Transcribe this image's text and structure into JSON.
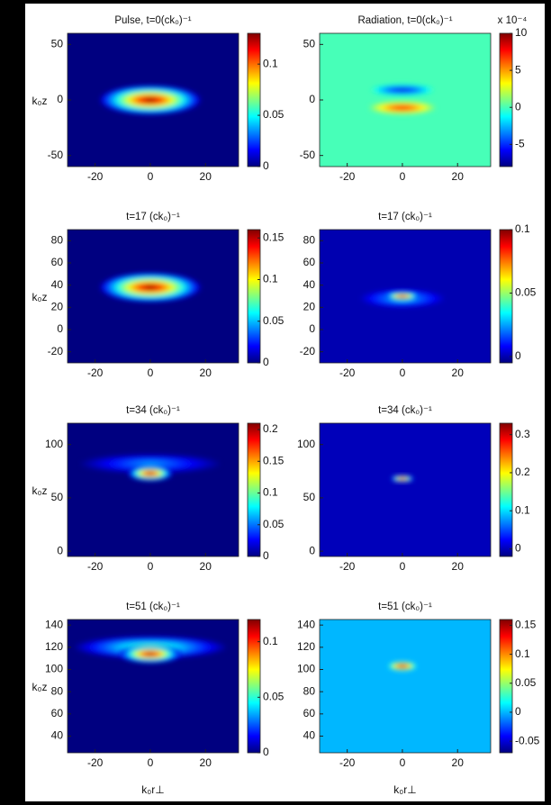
{
  "chart_data": [
    {
      "type": "heatmap",
      "title": "Pulse, t=0(ck₀)⁻¹",
      "ylabel": "k₀z",
      "colormap": "jet",
      "xlim": [
        -30,
        32
      ],
      "xticks": [
        -20,
        0,
        20
      ],
      "ylim": [
        -60,
        60
      ],
      "yticks": [
        -50,
        0,
        50
      ],
      "clim": [
        0,
        0.13
      ],
      "cticks": [
        0,
        0.05,
        0.1
      ],
      "blobs": [
        {
          "x": 0,
          "y": 0,
          "rx": 18,
          "ry": 13,
          "value": 0.13
        }
      ]
    },
    {
      "type": "heatmap",
      "title": "Radiation, t=0(ck₀)⁻¹",
      "colormap": "jet",
      "cmultiplier": "x 10⁻⁴",
      "xlim": [
        -30,
        32
      ],
      "xticks": [
        -20,
        0,
        20
      ],
      "ylim": [
        -60,
        60
      ],
      "yticks": [
        -50,
        0,
        50
      ],
      "clim": [
        -8,
        10
      ],
      "cticks": [
        -5,
        0,
        5,
        10
      ],
      "blobs": [
        {
          "x": 0,
          "y": 9,
          "rx": 11,
          "ry": 5,
          "value": -7
        },
        {
          "x": 0,
          "y": -7,
          "rx": 12,
          "ry": 6,
          "value": 8
        }
      ]
    },
    {
      "type": "heatmap",
      "title": "t=17 (ck₀)⁻¹",
      "ylabel": "k₀z",
      "colormap": "jet",
      "xlim": [
        -30,
        32
      ],
      "xticks": [
        -20,
        0,
        20
      ],
      "ylim": [
        -30,
        90
      ],
      "yticks": [
        -20,
        0,
        20,
        40,
        60,
        80
      ],
      "clim": [
        0,
        0.16
      ],
      "cticks": [
        0,
        0.05,
        0.1,
        0.15
      ],
      "blobs": [
        {
          "x": 0,
          "y": 38,
          "rx": 18,
          "ry": 13,
          "value": 0.16
        }
      ]
    },
    {
      "type": "heatmap",
      "title": "t=17 (ck₀)⁻¹",
      "colormap": "jet",
      "xlim": [
        -30,
        32
      ],
      "xticks": [
        -20,
        0,
        20
      ],
      "ylim": [
        -30,
        90
      ],
      "yticks": [
        -20,
        0,
        20,
        40,
        60,
        80
      ],
      "clim": [
        -0.005,
        0.1
      ],
      "cticks": [
        0,
        0.05,
        0.1
      ],
      "blobs": [
        {
          "x": 0,
          "y": 28,
          "rx": 15,
          "ry": 8,
          "value": 0.03
        },
        {
          "x": 0,
          "y": 30,
          "rx": 6,
          "ry": 4,
          "value": 0.1
        }
      ]
    },
    {
      "type": "heatmap",
      "title": "t=34 (ck₀)⁻¹",
      "colormap": "jet",
      "xlim": [
        -30,
        32
      ],
      "xticks": [
        -20,
        0,
        20
      ],
      "ylim": [
        -5,
        120
      ],
      "yticks": [
        0,
        50,
        100
      ],
      "ylabel": "k₀z",
      "clim": [
        0,
        0.21
      ],
      "cticks": [
        0,
        0.05,
        0.1,
        0.15,
        0.2
      ],
      "blobs": [
        {
          "x": 0,
          "y": 82,
          "rx": 25,
          "ry": 9,
          "value": 0.06
        },
        {
          "x": 0,
          "y": 73,
          "rx": 8,
          "ry": 7,
          "value": 0.21
        }
      ]
    },
    {
      "type": "heatmap",
      "title": "t=34 (ck₀)⁻¹",
      "colormap": "jet",
      "xlim": [
        -30,
        32
      ],
      "xticks": [
        -20,
        0,
        20
      ],
      "ylim": [
        -5,
        120
      ],
      "yticks": [
        0,
        50,
        100
      ],
      "clim": [
        -0.02,
        0.33
      ],
      "cticks": [
        0,
        0.1,
        0.2,
        0.3
      ],
      "blobs": [
        {
          "x": 0,
          "y": 68,
          "rx": 4,
          "ry": 3,
          "value": 0.33
        }
      ]
    },
    {
      "type": "heatmap",
      "title": "t=51 (ck₀)⁻¹",
      "ylabel": "k₀z",
      "xlabel": "k₀r⊥",
      "colormap": "jet",
      "xlim": [
        -30,
        32
      ],
      "xticks": [
        -20,
        0,
        20
      ],
      "ylim": [
        25,
        145
      ],
      "yticks": [
        40,
        60,
        80,
        100,
        120,
        140
      ],
      "clim": [
        0,
        0.12
      ],
      "cticks": [
        0,
        0.05,
        0.1
      ],
      "blobs": [
        {
          "x": 0,
          "y": 120,
          "rx": 27,
          "ry": 10,
          "value": 0.06
        },
        {
          "x": 0,
          "y": 114,
          "rx": 11,
          "ry": 8,
          "value": 0.12
        }
      ]
    },
    {
      "type": "heatmap",
      "title": "t=51 (ck₀)⁻¹",
      "xlabel": "k₀r⊥",
      "colormap": "jet",
      "xlim": [
        -30,
        32
      ],
      "xticks": [
        -20,
        0,
        20
      ],
      "ylim": [
        25,
        145
      ],
      "yticks": [
        40,
        60,
        80,
        100,
        120,
        140
      ],
      "clim": [
        -0.07,
        0.16
      ],
      "cticks": [
        -0.05,
        0,
        0.05,
        0.1,
        0.15
      ],
      "blobs": [
        {
          "x": 0,
          "y": 103,
          "rx": 5,
          "ry": 4,
          "value": 0.16
        }
      ]
    }
  ]
}
